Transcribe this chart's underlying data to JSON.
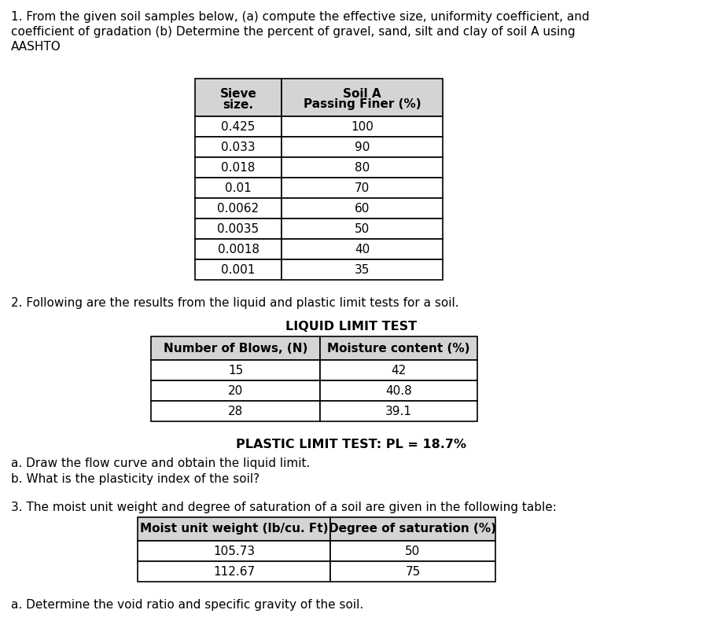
{
  "bg_color": "#ffffff",
  "q1_line1": "1. From the given soil samples below, (a) compute the effective size, uniformity coefficient, and",
  "q1_line2": "coefficient of gradation (b) Determine the percent of gravel, sand, silt and clay of soil A using",
  "q1_line3": "AASHTO",
  "table1_col1_header_line1": "Sieve",
  "table1_col1_header_line2": "size.",
  "table1_col2_header_line1": "Soil A",
  "table1_col2_header_line2": "Passing Finer (%)",
  "table1_data": [
    [
      "0.425",
      "100"
    ],
    [
      "0.033",
      "90"
    ],
    [
      "0.018",
      "80"
    ],
    [
      "0.01",
      "70"
    ],
    [
      "0.0062",
      "60"
    ],
    [
      "0.0035",
      "50"
    ],
    [
      "0.0018",
      "40"
    ],
    [
      "0.001",
      "35"
    ]
  ],
  "q2_text": "2. Following are the results from the liquid and plastic limit tests for a soil.",
  "liquid_limit_title": "LIQUID LIMIT TEST",
  "table2_col1_header": "Number of Blows, (N)",
  "table2_col2_header": "Moisture content (%)",
  "table2_data": [
    [
      "15",
      "42"
    ],
    [
      "20",
      "40.8"
    ],
    [
      "28",
      "39.1"
    ]
  ],
  "plastic_limit_text": "PLASTIC LIMIT TEST: PL = 18.7%",
  "q2a_text": "a. Draw the flow curve and obtain the liquid limit.",
  "q2b_text": "b. What is the plasticity index of the soil?",
  "q3_text": "3. The moist unit weight and degree of saturation of a soil are given in the following table:",
  "table3_col1_header": "Moist unit weight (lb/cu. Ft)",
  "table3_col2_header": "Degree of saturation (%)",
  "table3_data": [
    [
      "105.73",
      "50"
    ],
    [
      "112.67",
      "75"
    ]
  ],
  "q3a_text": "a. Determine the void ratio and specific gravity of the soil.",
  "header_gray": "#d4d4d4",
  "fs_body": 11.0,
  "fs_table": 11.0,
  "fs_bold_title": 11.5
}
